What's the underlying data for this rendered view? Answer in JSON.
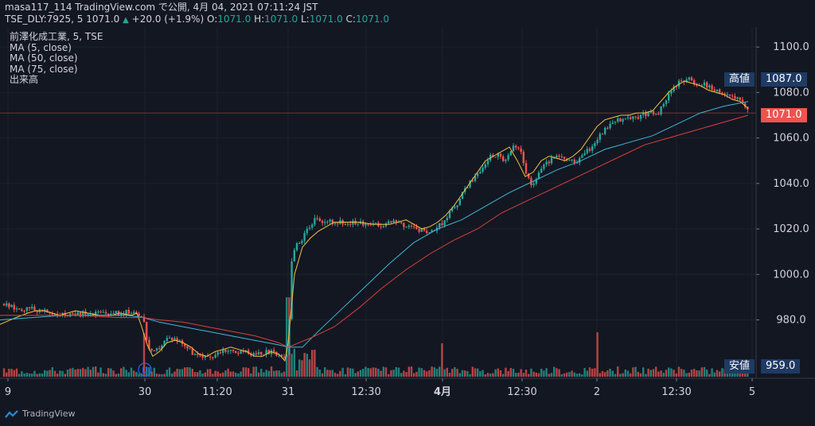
{
  "header": {
    "line1": "masa117_114 TradingView.com で公開, 4月 04, 2021 07:11:24 JST",
    "symbol": "TSE_DLY:7925, 5",
    "last": "1071.0",
    "change": "+20.0 (+1.9%)",
    "o_label": "O:",
    "o": "1071.0",
    "h_label": "H:",
    "h": "1071.0",
    "l_label": "L:",
    "l": "1071.0",
    "c_label": "C:",
    "c": "1071.0"
  },
  "legend": {
    "title": "前澤化成工業, 5, TSE",
    "ma5": "MA (5, close)",
    "ma50": "MA (50, close)",
    "ma75": "MA (75, close)",
    "volume": "出来高"
  },
  "price_tags": {
    "high_label": "高値",
    "high_value": "1087.0",
    "last_value": "1071.0",
    "low_label": "安値",
    "low_value": "959.0"
  },
  "marker": "D",
  "brand": "TradingView",
  "colors": {
    "bg": "#131722",
    "up": "#26a69a",
    "down": "#ef5350",
    "ma5": "#f5c542",
    "ma50": "#3fb8d6",
    "ma75": "#d9413b",
    "tag_bg": "#1f3a63",
    "last_tag": "#ef5350"
  },
  "chart_data": {
    "type": "candlestick",
    "ylim": [
      955,
      1106
    ],
    "y_ticks": [
      "1100.0",
      "1080.0",
      "1060.0",
      "1040.0",
      "1020.0",
      "1000.0",
      "980.0"
    ],
    "x_ticks": [
      "9",
      "30",
      "11:20",
      "31",
      "12:30",
      "4月",
      "12:30",
      "2",
      "12:30",
      "5"
    ],
    "last_price": 1071.0,
    "series": [
      {
        "name": "MA (5, close)",
        "x": [
          0,
          20,
          35,
          45,
          55,
          65,
          75,
          85,
          95,
          110,
          125,
          140,
          150,
          165,
          172,
          178,
          185,
          192,
          200,
          210,
          220,
          230,
          240,
          250,
          260,
          270,
          280,
          290,
          300,
          310,
          320,
          330,
          340,
          350,
          358,
          362,
          370,
          380,
          390,
          400,
          410,
          420,
          430,
          450,
          470,
          490,
          510,
          520,
          530,
          540,
          550,
          560,
          570,
          580,
          590,
          600,
          610,
          620,
          630,
          640,
          650,
          660,
          670,
          680,
          690,
          700,
          710,
          720,
          730,
          740,
          750,
          760,
          770,
          780,
          790,
          800,
          810,
          820,
          830,
          840,
          850,
          860,
          870,
          880,
          890,
          900,
          910,
          920,
          930,
          940
        ],
        "y": [
          978,
          981,
          983,
          984,
          984,
          983,
          982,
          983,
          984,
          983,
          982,
          982,
          983,
          982,
          983,
          977,
          969,
          964,
          966,
          970,
          971,
          970,
          968,
          965,
          964,
          966,
          967,
          968,
          967,
          966,
          964,
          964,
          966,
          965,
          962,
          970,
          1000,
          1012,
          1016,
          1019,
          1021,
          1023,
          1023,
          1023,
          1022,
          1022,
          1024,
          1022,
          1020,
          1021,
          1023,
          1026,
          1030,
          1035,
          1040,
          1045,
          1050,
          1052,
          1054,
          1056,
          1050,
          1043,
          1045,
          1050,
          1052,
          1051,
          1050,
          1052,
          1055,
          1060,
          1065,
          1068,
          1069,
          1070,
          1070,
          1071,
          1071,
          1072,
          1076,
          1080,
          1083,
          1085,
          1084,
          1083,
          1081,
          1080,
          1079,
          1077,
          1076,
          1073
        ]
      },
      {
        "name": "MA (50, close)",
        "x": [
          0,
          40,
          80,
          120,
          160,
          180,
          200,
          230,
          260,
          290,
          320,
          350,
          362,
          380,
          400,
          430,
          460,
          490,
          520,
          550,
          580,
          610,
          640,
          670,
          700,
          730,
          760,
          790,
          820,
          850,
          880,
          910,
          940
        ],
        "y": [
          980,
          981,
          982,
          982,
          982,
          981,
          979,
          977,
          975,
          973,
          971,
          969,
          968,
          968,
          975,
          985,
          995,
          1005,
          1014,
          1020,
          1024,
          1030,
          1036,
          1041,
          1046,
          1050,
          1055,
          1058,
          1061,
          1066,
          1071,
          1074,
          1076
        ]
      },
      {
        "name": "MA (75, close)",
        "x": [
          0,
          50,
          100,
          150,
          180,
          200,
          230,
          260,
          290,
          320,
          350,
          362,
          390,
          420,
          450,
          480,
          510,
          540,
          570,
          600,
          630,
          660,
          690,
          720,
          750,
          780,
          810,
          840,
          870,
          900,
          940
        ],
        "y": [
          982,
          982,
          982,
          981,
          981,
          980,
          979,
          977,
          975,
          973,
          970,
          968,
          972,
          977,
          985,
          994,
          1002,
          1009,
          1015,
          1020,
          1027,
          1032,
          1037,
          1042,
          1047,
          1052,
          1057,
          1060,
          1063,
          1066,
          1070
        ]
      }
    ],
    "candle_anchors": {
      "x": [
        5,
        20,
        35,
        50,
        70,
        90,
        110,
        130,
        150,
        170,
        180,
        186,
        192,
        200,
        210,
        220,
        230,
        240,
        250,
        260,
        280,
        300,
        320,
        340,
        355,
        362,
        366,
        372,
        378,
        385,
        395,
        405,
        420,
        440,
        460,
        480,
        500,
        520,
        540,
        555,
        565,
        575,
        585,
        595,
        605,
        615,
        625,
        635,
        645,
        655,
        662,
        668,
        678,
        690,
        700,
        715,
        725,
        735,
        745,
        755,
        765,
        780,
        800,
        815,
        825,
        835,
        845,
        855,
        865,
        875,
        885,
        895,
        905,
        915,
        925,
        935,
        940
      ],
      "y": [
        987,
        985,
        985,
        984,
        983,
        982,
        983,
        983,
        983,
        984,
        981,
        968,
        965,
        968,
        972,
        972,
        970,
        966,
        964,
        963,
        967,
        966,
        965,
        966,
        963,
        966,
        1005,
        1014,
        1013,
        1020,
        1024,
        1023,
        1023,
        1023,
        1022,
        1022,
        1023,
        1020,
        1019,
        1022,
        1027,
        1031,
        1038,
        1042,
        1046,
        1052,
        1053,
        1050,
        1056,
        1054,
        1044,
        1038,
        1046,
        1050,
        1052,
        1050,
        1049,
        1053,
        1057,
        1062,
        1066,
        1068,
        1069,
        1071,
        1070,
        1076,
        1081,
        1085,
        1086,
        1083,
        1084,
        1081,
        1080,
        1079,
        1078,
        1075,
        1071
      ]
    },
    "volume_spikes": {
      "x": [
        180,
        362,
        555,
        750
      ],
      "v": [
        0.55,
        1.0,
        0.42,
        0.56
      ]
    }
  }
}
